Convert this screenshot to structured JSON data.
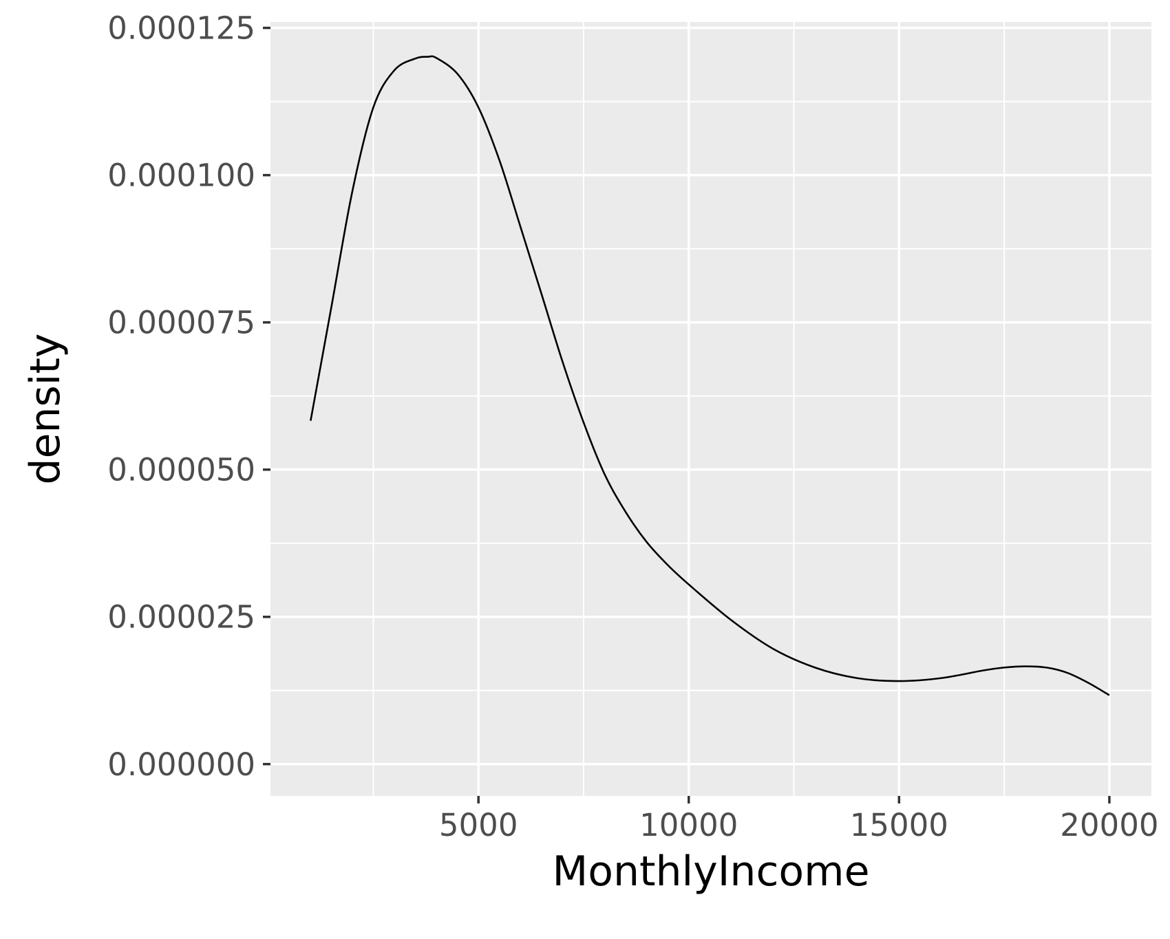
{
  "chart_data": {
    "type": "line",
    "title": "",
    "xlabel": "MonthlyIncome",
    "ylabel": "density",
    "xlim": [
      55,
      21000
    ],
    "ylim": [
      -5.4e-06,
      0.000126
    ],
    "x_ticks": [
      5000,
      10000,
      15000,
      20000
    ],
    "x_tick_labels": [
      "5000",
      "10000",
      "15000",
      "20000"
    ],
    "y_ticks": [
      0,
      2.5e-05,
      5e-05,
      7.5e-05,
      0.0001,
      0.000125
    ],
    "y_tick_labels": [
      "0.000000",
      "0.000025",
      "0.000050",
      "0.000075",
      "0.000100",
      "0.000125"
    ],
    "grid": true,
    "legend": "none",
    "colors": {
      "panel": "#ebebeb",
      "grid": "#ffffff",
      "line": "#000000",
      "tick_text": "#4d4d4d",
      "tick_mark": "#333333"
    },
    "series": [
      {
        "x": [
          1009,
          1500,
          2000,
          2500,
          3000,
          3500,
          3800,
          4000,
          4500,
          5000,
          5500,
          6000,
          6500,
          7000,
          7500,
          8000,
          8500,
          9000,
          9500,
          10000,
          11000,
          12000,
          13000,
          14000,
          15000,
          16000,
          17000,
          17500,
          18000,
          18500,
          19000,
          19500,
          19999
        ],
        "y": [
          5.83e-05,
          7.75e-05,
          9.72e-05,
          0.0001115,
          0.0001178,
          0.0001198,
          0.0001201,
          0.0001199,
          0.0001172,
          0.0001115,
          0.0001025,
          9.12e-05,
          7.98e-05,
          6.83e-05,
          5.8e-05,
          4.92e-05,
          4.28e-05,
          3.77e-05,
          3.38e-05,
          3.05e-05,
          2.45e-05,
          1.96e-05,
          1.64e-05,
          1.46e-05,
          1.41e-05,
          1.46e-05,
          1.59e-05,
          1.64e-05,
          1.66e-05,
          1.64e-05,
          1.55e-05,
          1.38e-05,
          1.17e-05
        ]
      }
    ]
  }
}
